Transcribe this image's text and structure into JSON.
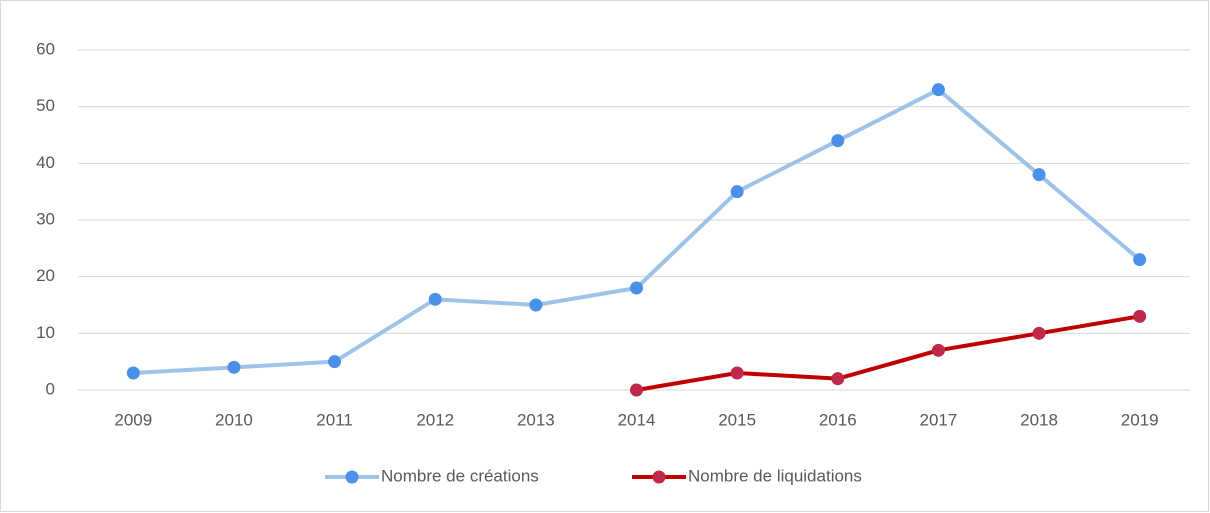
{
  "chart_data": {
    "type": "line",
    "categories": [
      "2009",
      "2010",
      "2011",
      "2012",
      "2013",
      "2014",
      "2015",
      "2016",
      "2017",
      "2018",
      "2019"
    ],
    "series": [
      {
        "name": "Nombre de créations",
        "color": "#9dc3e6",
        "marker_color": "#4a8fe8",
        "values": [
          3,
          4,
          5,
          16,
          15,
          18,
          35,
          44,
          53,
          38,
          23
        ]
      },
      {
        "name": "Nombre de liquidations",
        "color": "#c00000",
        "marker_color": "#c0284a",
        "values": [
          null,
          null,
          null,
          null,
          null,
          0,
          3,
          2,
          7,
          10,
          13
        ]
      }
    ],
    "ylim": [
      0,
      60
    ],
    "yticks": [
      0,
      10,
      20,
      30,
      40,
      50,
      60
    ],
    "grid": true,
    "legend": "bottom"
  }
}
